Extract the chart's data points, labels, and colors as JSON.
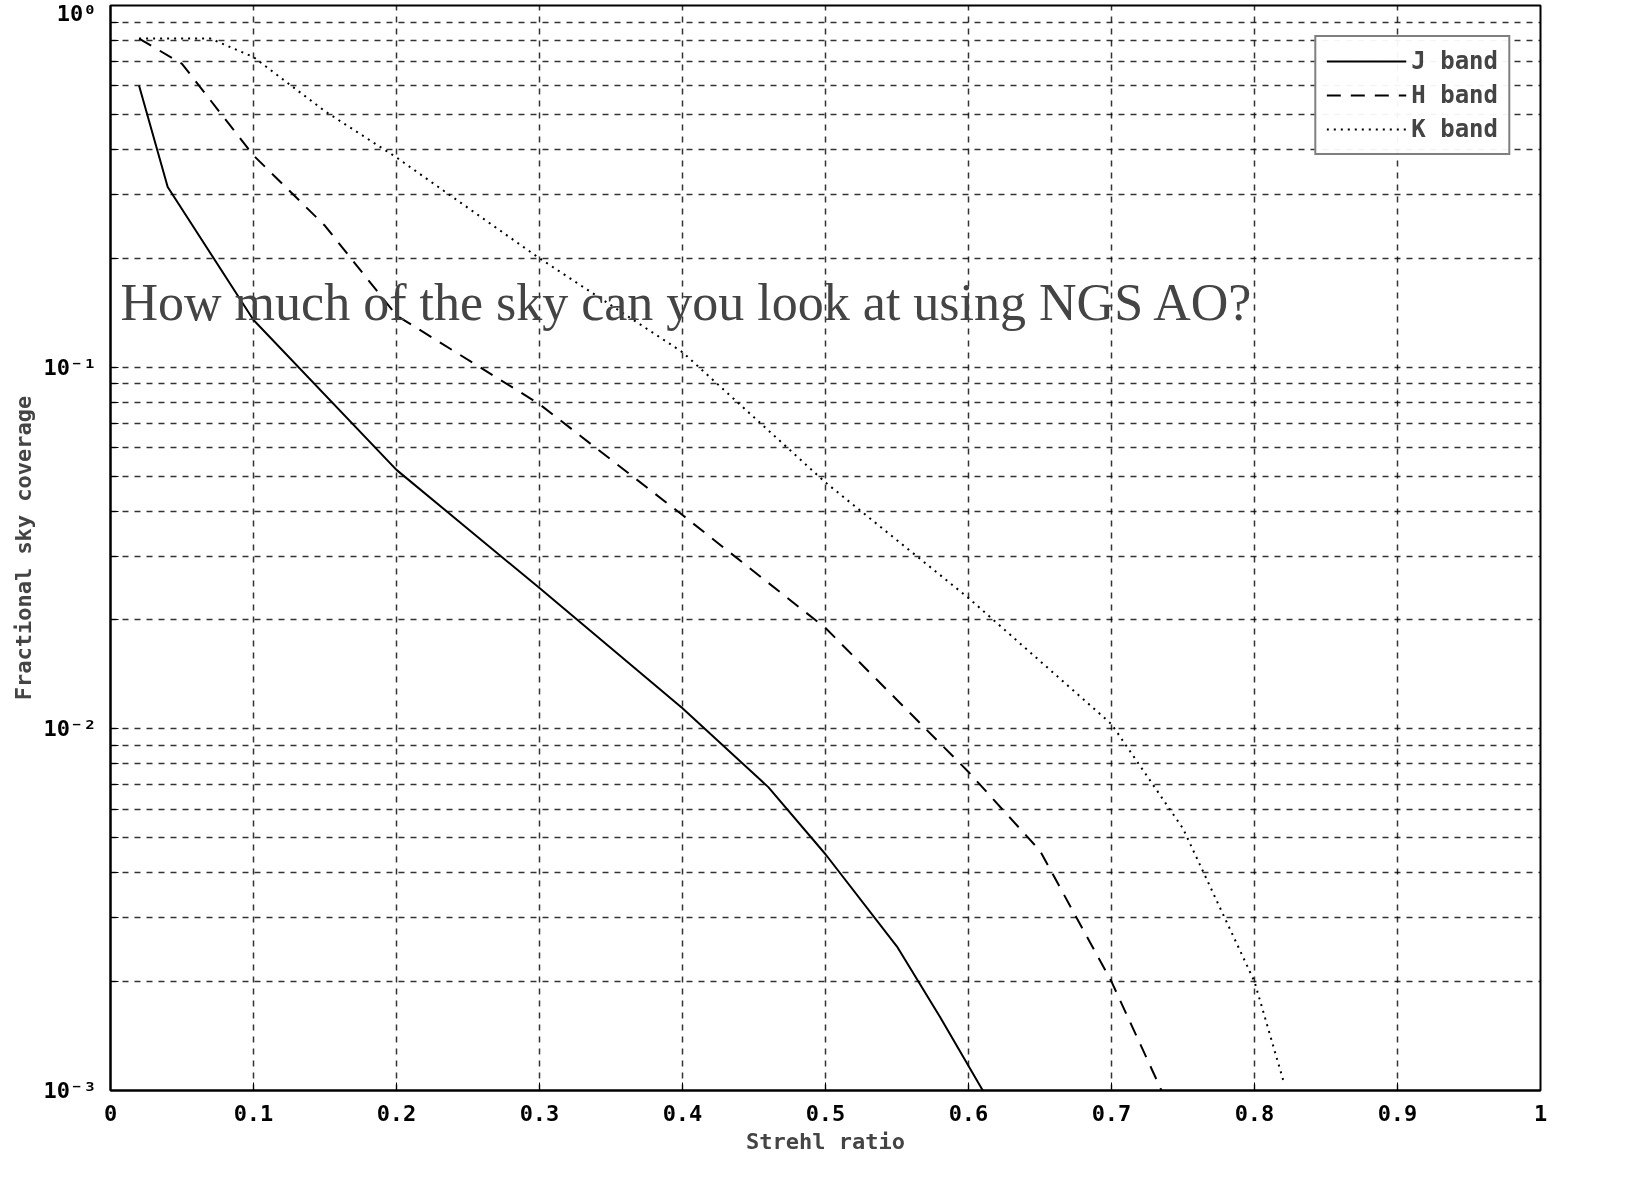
{
  "chart_data": {
    "type": "line",
    "xlabel": "Strehl ratio",
    "ylabel": "Fractional sky coverage",
    "annotations": [
      "How much of the sky can you look at using NGS AO?"
    ],
    "log": "y",
    "grid": true,
    "legend": "top right",
    "xlim": [
      0,
      1
    ],
    "xticks": [
      {
        "value": 0,
        "label": "0"
      },
      0.1,
      0.2,
      0.3,
      0.4,
      0.5,
      0.6,
      0.7,
      0.8,
      0.9,
      1
    ],
    "ylim": [
      0.001,
      1
    ],
    "yticks": [
      {
        "value": 0.001,
        "label": "10⁻³"
      },
      {
        "value": 0.002,
        "label": null
      },
      {
        "value": 0.003,
        "label": null
      },
      {
        "value": 0.004,
        "label": null
      },
      {
        "value": 0.005,
        "label": null
      },
      {
        "value": 0.006,
        "label": null
      },
      {
        "value": 0.007,
        "label": null
      },
      {
        "value": 0.008,
        "label": null
      },
      {
        "value": 0.009,
        "label": null
      },
      {
        "value": 0.01,
        "label": "10⁻²"
      },
      {
        "value": 0.02,
        "label": null
      },
      {
        "value": 0.03,
        "label": null
      },
      {
        "value": 0.04,
        "label": null
      },
      {
        "value": 0.05,
        "label": null
      },
      {
        "value": 0.06,
        "label": null
      },
      {
        "value": 0.07,
        "label": null
      },
      {
        "value": 0.08,
        "label": null
      },
      {
        "value": 0.09,
        "label": null
      },
      {
        "value": 0.1,
        "label": "10⁻¹"
      },
      {
        "value": 0.2,
        "label": null
      },
      {
        "value": 0.3,
        "label": null
      },
      {
        "value": 0.4,
        "label": null
      },
      {
        "value": 0.5,
        "label": null
      },
      {
        "value": 0.6,
        "label": null
      },
      {
        "value": 0.7,
        "label": null
      },
      {
        "value": 0.8,
        "label": null
      },
      {
        "value": 0.9,
        "label": null
      },
      {
        "value": 1,
        "label": "10⁰"
      }
    ],
    "series": [
      {
        "name": "J band",
        "color": "#000000",
        "line_style": "solid",
        "x": [
          0.02,
          0.04,
          0.1,
          0.2,
          0.3,
          0.4,
          0.46,
          0.5,
          0.55,
          0.58,
          0.61
        ],
        "values": [
          0.6,
          0.315,
          0.135,
          0.052,
          0.0245,
          0.0114,
          0.0069,
          0.0045,
          0.0025,
          0.0016,
          0.001
        ]
      },
      {
        "name": "H band",
        "color": "#000000",
        "line_style": "dashed",
        "x": [
          0.02,
          0.05,
          0.1,
          0.15,
          0.2,
          0.3,
          0.4,
          0.5,
          0.6,
          0.65,
          0.7,
          0.735
        ],
        "values": [
          0.81,
          0.69,
          0.385,
          0.246,
          0.139,
          0.079,
          0.039,
          0.019,
          0.0076,
          0.0046,
          0.002,
          0.001
        ]
      },
      {
        "name": "K band",
        "color": "#000000",
        "line_style": "dotted",
        "x": [
          0.02,
          0.07,
          0.1,
          0.15,
          0.2,
          0.3,
          0.4,
          0.5,
          0.6,
          0.65,
          0.7,
          0.75,
          0.8,
          0.82
        ],
        "values": [
          0.81,
          0.81,
          0.72,
          0.51,
          0.38,
          0.2,
          0.11,
          0.048,
          0.023,
          0.0154,
          0.0103,
          0.0053,
          0.002,
          0.00107
        ]
      }
    ]
  }
}
